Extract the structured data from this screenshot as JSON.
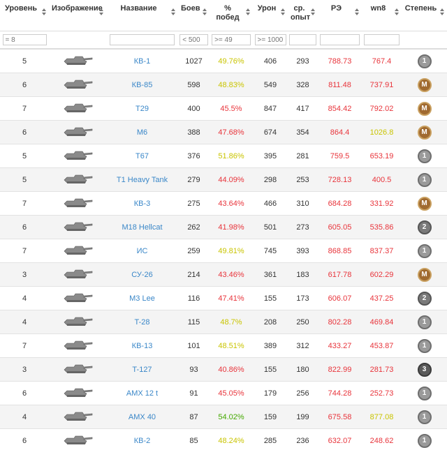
{
  "header": {
    "columns": [
      "Уровень",
      "Изображение",
      "Название",
      "Боев",
      "% побед",
      "Урон",
      "ср. опыт",
      "РЭ",
      "wn8",
      "Степень"
    ]
  },
  "filters": {
    "level": "= 8",
    "battles": "< 500",
    "winrate": ">= 49",
    "damage": ">= 1000"
  },
  "colors": {
    "eff": "#e8343b"
  },
  "rows": [
    {
      "level": 5,
      "name": "КВ-1",
      "battles": 1027,
      "winrate": "49.76%",
      "winrate_color": "#c9c400",
      "damage": 406,
      "xp": 293,
      "eff": 788.73,
      "wn8": 767.4,
      "wn8_color": "#e8343b",
      "badge": "1"
    },
    {
      "level": 6,
      "name": "КВ-85",
      "battles": 598,
      "winrate": "48.83%",
      "winrate_color": "#c9c400",
      "damage": 549,
      "xp": 328,
      "eff": 811.48,
      "wn8": 737.91,
      "wn8_color": "#e8343b",
      "badge": "M"
    },
    {
      "level": 7,
      "name": "T29",
      "battles": 400,
      "winrate": "45.5%",
      "winrate_color": "#e8343b",
      "damage": 847,
      "xp": 417,
      "eff": 854.42,
      "wn8": 792.02,
      "wn8_color": "#e8343b",
      "badge": "M"
    },
    {
      "level": 6,
      "name": "M6",
      "battles": 388,
      "winrate": "47.68%",
      "winrate_color": "#e8343b",
      "damage": 674,
      "xp": 354,
      "eff": 864.4,
      "wn8": 1026.8,
      "wn8_color": "#c9c400",
      "badge": "M"
    },
    {
      "level": 5,
      "name": "T67",
      "battles": 376,
      "winrate": "51.86%",
      "winrate_color": "#c9c400",
      "damage": 395,
      "xp": 281,
      "eff": 759.5,
      "wn8": 653.19,
      "wn8_color": "#e8343b",
      "badge": "1"
    },
    {
      "level": 5,
      "name": "T1 Heavy Tank",
      "battles": 279,
      "winrate": "44.09%",
      "winrate_color": "#e8343b",
      "damage": 298,
      "xp": 253,
      "eff": 728.13,
      "wn8": 400.5,
      "wn8_color": "#e8343b",
      "badge": "1"
    },
    {
      "level": 7,
      "name": "КВ-3",
      "battles": 275,
      "winrate": "43.64%",
      "winrate_color": "#e8343b",
      "damage": 466,
      "xp": 310,
      "eff": 684.28,
      "wn8": 331.92,
      "wn8_color": "#e8343b",
      "badge": "M"
    },
    {
      "level": 6,
      "name": "M18 Hellcat",
      "battles": 262,
      "winrate": "41.98%",
      "winrate_color": "#e8343b",
      "damage": 501,
      "xp": 273,
      "eff": 605.05,
      "wn8": 535.86,
      "wn8_color": "#e8343b",
      "badge": "2"
    },
    {
      "level": 7,
      "name": "ИС",
      "battles": 259,
      "winrate": "49.81%",
      "winrate_color": "#c9c400",
      "damage": 745,
      "xp": 393,
      "eff": 868.85,
      "wn8": 837.37,
      "wn8_color": "#e8343b",
      "badge": "1"
    },
    {
      "level": 3,
      "name": "СУ-26",
      "battles": 214,
      "winrate": "43.46%",
      "winrate_color": "#e8343b",
      "damage": 361,
      "xp": 183,
      "eff": 617.78,
      "wn8": 602.29,
      "wn8_color": "#e8343b",
      "badge": "M"
    },
    {
      "level": 4,
      "name": "M3 Lee",
      "battles": 116,
      "winrate": "47.41%",
      "winrate_color": "#e8343b",
      "damage": 155,
      "xp": 173,
      "eff": 606.07,
      "wn8": 437.25,
      "wn8_color": "#e8343b",
      "badge": "2"
    },
    {
      "level": 4,
      "name": "T-28",
      "battles": 115,
      "winrate": "48.7%",
      "winrate_color": "#c9c400",
      "damage": 208,
      "xp": 250,
      "eff": 802.28,
      "wn8": 469.84,
      "wn8_color": "#e8343b",
      "badge": "1"
    },
    {
      "level": 7,
      "name": "КВ-13",
      "battles": 101,
      "winrate": "48.51%",
      "winrate_color": "#c9c400",
      "damage": 389,
      "xp": 312,
      "eff": 433.27,
      "wn8": 453.87,
      "wn8_color": "#e8343b",
      "badge": "1"
    },
    {
      "level": 3,
      "name": "T-127",
      "battles": 93,
      "winrate": "40.86%",
      "winrate_color": "#e8343b",
      "damage": 155,
      "xp": 180,
      "eff": 822.99,
      "wn8": 281.73,
      "wn8_color": "#e8343b",
      "badge": "3"
    },
    {
      "level": 6,
      "name": "AMX 12 t",
      "battles": 91,
      "winrate": "45.05%",
      "winrate_color": "#e8343b",
      "damage": 179,
      "xp": 256,
      "eff": 744.28,
      "wn8": 252.73,
      "wn8_color": "#e8343b",
      "badge": "1"
    },
    {
      "level": 4,
      "name": "AMX 40",
      "battles": 87,
      "winrate": "54.02%",
      "winrate_color": "#44a800",
      "damage": 159,
      "xp": 199,
      "eff": 675.58,
      "wn8": 877.08,
      "wn8_color": "#c9c400",
      "badge": "1"
    },
    {
      "level": 6,
      "name": "КВ-2",
      "battles": 85,
      "winrate": "48.24%",
      "winrate_color": "#c9c400",
      "damage": 285,
      "xp": 236,
      "eff": 632.07,
      "wn8": 248.62,
      "wn8_color": "#e8343b",
      "badge": "1"
    }
  ]
}
